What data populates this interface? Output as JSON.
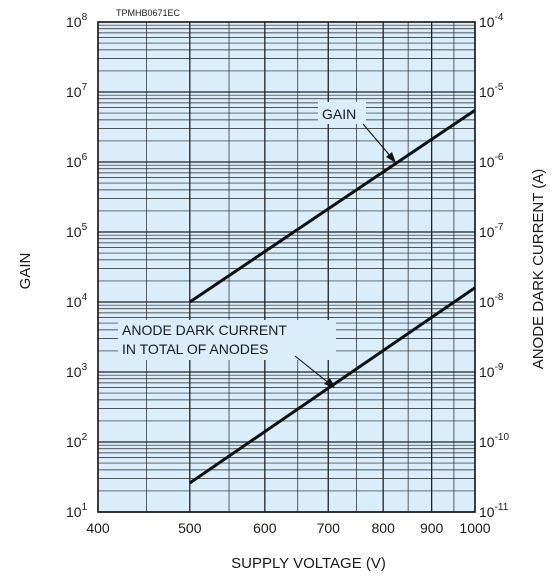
{
  "chart_data": {
    "type": "line",
    "figure_code": "TPMHB0671EC",
    "xlabel": "SUPPLY VOLTAGE (V)",
    "ylabel_left": "GAIN",
    "ylabel_right": "ANODE DARK CURRENT (A)",
    "x_scale": "log",
    "xlim": [
      400,
      1000
    ],
    "x_ticks": [
      400,
      500,
      600,
      700,
      800,
      900,
      1000
    ],
    "y_left_scale": "log",
    "ylim_left": [
      10,
      100000000
    ],
    "y_left_ticks": [
      {
        "base": "10",
        "exp": "1"
      },
      {
        "base": "10",
        "exp": "2"
      },
      {
        "base": "10",
        "exp": "3"
      },
      {
        "base": "10",
        "exp": "4"
      },
      {
        "base": "10",
        "exp": "5"
      },
      {
        "base": "10",
        "exp": "6"
      },
      {
        "base": "10",
        "exp": "7"
      },
      {
        "base": "10",
        "exp": "8"
      }
    ],
    "y_right_scale": "log",
    "ylim_right": [
      1e-11,
      0.0001
    ],
    "y_right_ticks": [
      {
        "base": "10",
        "exp": "-11"
      },
      {
        "base": "10",
        "exp": "-10"
      },
      {
        "base": "10",
        "exp": "-9"
      },
      {
        "base": "10",
        "exp": "-8"
      },
      {
        "base": "10",
        "exp": "-7"
      },
      {
        "base": "10",
        "exp": "-6"
      },
      {
        "base": "10",
        "exp": "-5"
      },
      {
        "base": "10",
        "exp": "-4"
      }
    ],
    "grid": true,
    "series": [
      {
        "name": "GAIN",
        "axis": "left",
        "x": [
          500,
          1000
        ],
        "y": [
          10000,
          5500000
        ]
      },
      {
        "name": "ANODE DARK CURRENT IN TOTAL OF ANODES",
        "axis": "right",
        "x": [
          500,
          1000
        ],
        "y": [
          2.6e-11,
          1.6e-08
        ]
      }
    ],
    "annotations": {
      "gain_label": "GAIN",
      "dark_label_line1": "ANODE DARK CURRENT",
      "dark_label_line2": "IN TOTAL OF ANODES"
    },
    "colors": {
      "plot_background": "#d9eefa",
      "grid": "#222222",
      "lines": "#111111"
    }
  }
}
